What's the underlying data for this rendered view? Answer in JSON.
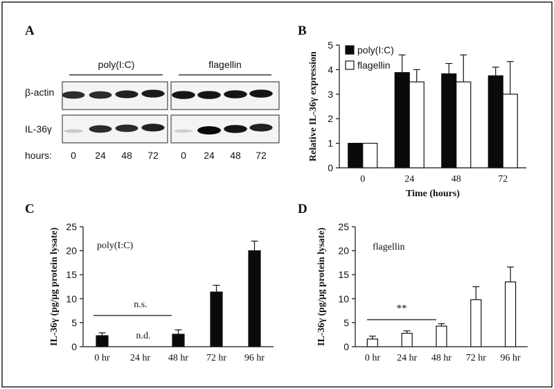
{
  "figure": {
    "colors": {
      "frame": "#222222",
      "black_bar": "#0a0a0a",
      "white_bar": "#ffffff",
      "blot_bg": "#f4f4f4"
    }
  },
  "panel_a": {
    "label": "A",
    "group_labels": [
      "poly(I:C)",
      "flagellin"
    ],
    "row_labels": [
      "β-actin",
      "IL-36γ"
    ],
    "hours_label": "hours:",
    "hours": [
      "0",
      "24",
      "48",
      "72",
      "0",
      "24",
      "48",
      "72"
    ],
    "band_intensity": {
      "beta_actin": [
        0.85,
        0.85,
        0.9,
        0.92,
        0.95,
        0.95,
        0.95,
        0.95
      ],
      "il36g": [
        0.15,
        0.85,
        0.85,
        0.9,
        0.12,
        1.0,
        0.95,
        0.9
      ]
    }
  },
  "panel_b": {
    "label": "B"
  },
  "panel_c": {
    "label": "C",
    "note": "n.s.",
    "nd": "n.d."
  },
  "panel_d": {
    "label": "D",
    "note": "**"
  },
  "chart_data": [
    {
      "panel": "B",
      "type": "bar",
      "categories": [
        "0",
        "24",
        "48",
        "72"
      ],
      "series": [
        {
          "name": "poly(I:C)",
          "color": "#0a0a0a",
          "values": [
            1.0,
            3.88,
            3.83,
            3.75
          ],
          "errors": [
            0,
            0.72,
            0.42,
            0.35
          ]
        },
        {
          "name": "flagellin",
          "color": "#ffffff",
          "values": [
            1.0,
            3.5,
            3.5,
            3.0
          ],
          "errors": [
            0,
            0.5,
            1.1,
            1.33
          ]
        }
      ],
      "xlabel": "Time (hours)",
      "ylabel": "Relative IL-36γ expression",
      "ylim": [
        0,
        5
      ],
      "yticks": [
        0,
        1,
        2,
        3,
        4,
        5
      ],
      "legend": "top-left"
    },
    {
      "panel": "C",
      "type": "bar",
      "categories": [
        "0 hr",
        "24 hr",
        "48 hr",
        "72 hr",
        "96 hr"
      ],
      "series": [
        {
          "name": "poly(I:C)",
          "color": "#0a0a0a",
          "values": [
            2.3,
            null,
            2.6,
            11.4,
            20.0
          ],
          "errors": [
            0.6,
            null,
            0.9,
            1.4,
            2.0
          ]
        }
      ],
      "inset_label": "poly(I:C)",
      "xlabel": "",
      "ylabel": "IL-36γ (pg/μg protein lysate)",
      "ylim": [
        0,
        25
      ],
      "yticks": [
        0,
        5,
        10,
        15,
        20,
        25
      ]
    },
    {
      "panel": "D",
      "type": "bar",
      "categories": [
        "0 hr",
        "24 hr",
        "48 hr",
        "72 hr",
        "96 hr"
      ],
      "series": [
        {
          "name": "flagellin",
          "color": "#ffffff",
          "values": [
            1.6,
            2.8,
            4.3,
            9.8,
            13.5
          ],
          "errors": [
            0.6,
            0.5,
            0.5,
            2.7,
            3.1
          ]
        }
      ],
      "inset_label": "flagellin",
      "xlabel": "",
      "ylabel": "IL-36γ (pg/μg protein lysate)",
      "ylim": [
        0,
        25
      ],
      "yticks": [
        0,
        5,
        10,
        15,
        20,
        25
      ]
    }
  ]
}
